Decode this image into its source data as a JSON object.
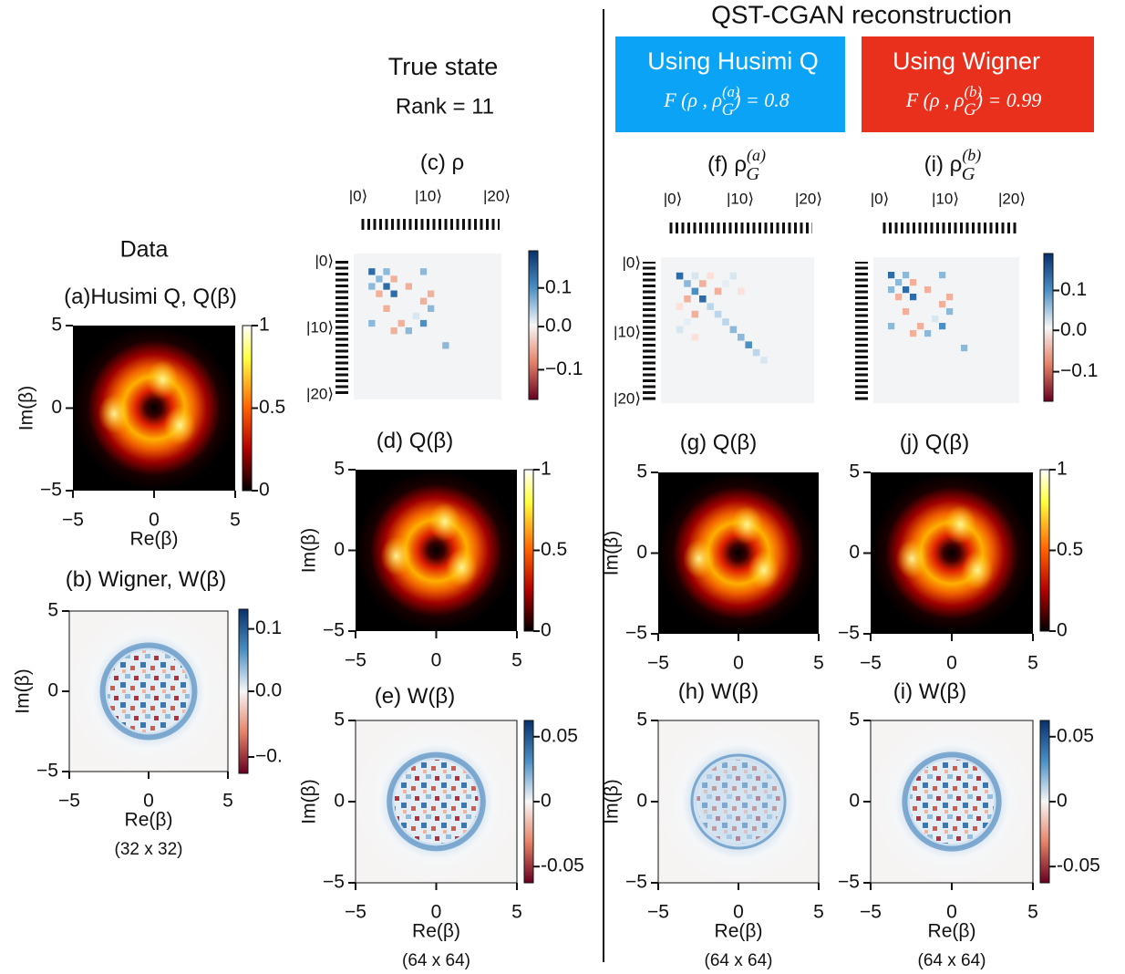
{
  "header": {
    "true_state": "True state",
    "rank": "Rank = 11",
    "reconstruction": "QST-CGAN reconstruction",
    "data": "Data",
    "husimi_box": {
      "title": "Using Husimi Q",
      "fidelity": {
        "text": "F (ρ , ρ",
        "sub": "G",
        "sup": "(a)",
        "after": ") = 0.8"
      }
    },
    "wigner_box": {
      "title": "Using Wigner",
      "fidelity": {
        "text": "F (ρ , ρ",
        "sub": "G",
        "sup": "(b)",
        "after": ") = 0.99"
      }
    }
  },
  "panels": [
    {
      "title": {
        "text": "(a)Husimi Q, Q(β)"
      },
      "xticks": [
        "−5",
        "0",
        "5"
      ],
      "yticks": [
        "5",
        "0",
        "−5"
      ],
      "xlabel": "Re(β)",
      "ylabel": "Im(β)",
      "colorbar": [
        "1",
        "0.5",
        "0"
      ]
    },
    {
      "title": {
        "text": "(b) Wigner, W(β)"
      },
      "xticks": [
        "−5",
        "0",
        "5"
      ],
      "yticks": [
        "5",
        "0",
        "−5"
      ],
      "xlabel": "Re(β)",
      "ylabel": "Im(β)",
      "colorbar": [
        "0.1",
        "0.0",
        "−0."
      ],
      "note": "(32 x 32)"
    },
    {
      "title": {
        "text": "(c) ρ"
      },
      "kets": [
        "|0⟩",
        "|10⟩",
        "|20⟩"
      ],
      "colorbar": [
        "0.1",
        "0.0",
        "−0.1"
      ]
    },
    {
      "title": {
        "text": "(d) Q(β)"
      },
      "xticks": [
        "−5",
        "0",
        "5"
      ],
      "yticks": [
        "5",
        "0",
        "−5"
      ],
      "ylabel": "Im(β)",
      "colorbar": [
        "1",
        "0.5",
        "0"
      ]
    },
    {
      "title": {
        "text": "(e) W(β)"
      },
      "xticks": [
        "−5",
        "0",
        "5"
      ],
      "yticks": [
        "5",
        "0",
        "−5"
      ],
      "xlabel": "Re(β)",
      "ylabel": "Im(β)",
      "colorbar": [
        "0.05",
        "0",
        "-0.05"
      ],
      "note": "(64 x 64)"
    },
    {
      "title": {
        "text": "(f) ρ",
        "sub": "G",
        "sup": "(a)"
      },
      "kets": [
        "|0⟩",
        "|10⟩",
        "|20⟩"
      ]
    },
    {
      "title": {
        "text": "(g) Q(β)"
      },
      "xticks": [
        "−5",
        "0",
        "5"
      ],
      "yticks": [
        "5",
        "0",
        "−5"
      ],
      "ylabel": "Im(β)"
    },
    {
      "title": {
        "text": "(h) W(β)"
      },
      "xticks": [
        "−5",
        "0",
        "5"
      ],
      "yticks": [
        "5",
        "0",
        "−5"
      ],
      "xlabel": "Re(β)",
      "ylabel": "Im(β)",
      "note": "(64 x 64)"
    },
    {
      "title": {
        "text": "(i) ρ",
        "sub": "G",
        "sup": "(b)"
      },
      "kets": [
        "|0⟩",
        "|10⟩",
        "|20⟩"
      ],
      "colorbar": [
        "0.1",
        "0.0",
        "−0.1"
      ]
    },
    {
      "title": {
        "text": "(j) Q(β)"
      },
      "xticks": [
        "−5",
        "0",
        "5"
      ],
      "yticks": [
        "5",
        "0",
        "−5"
      ],
      "colorbar": [
        "1",
        "0.5",
        "0"
      ]
    },
    {
      "title": {
        "text": "(i) W(β)"
      },
      "xticks": [
        "−5",
        "0",
        "5"
      ],
      "yticks": [
        "5",
        "0",
        "−5"
      ],
      "xlabel": "Re(β)",
      "colorbar": [
        "0.05",
        "0",
        "-0.05"
      ],
      "note": "(64 x 64)"
    }
  ]
}
